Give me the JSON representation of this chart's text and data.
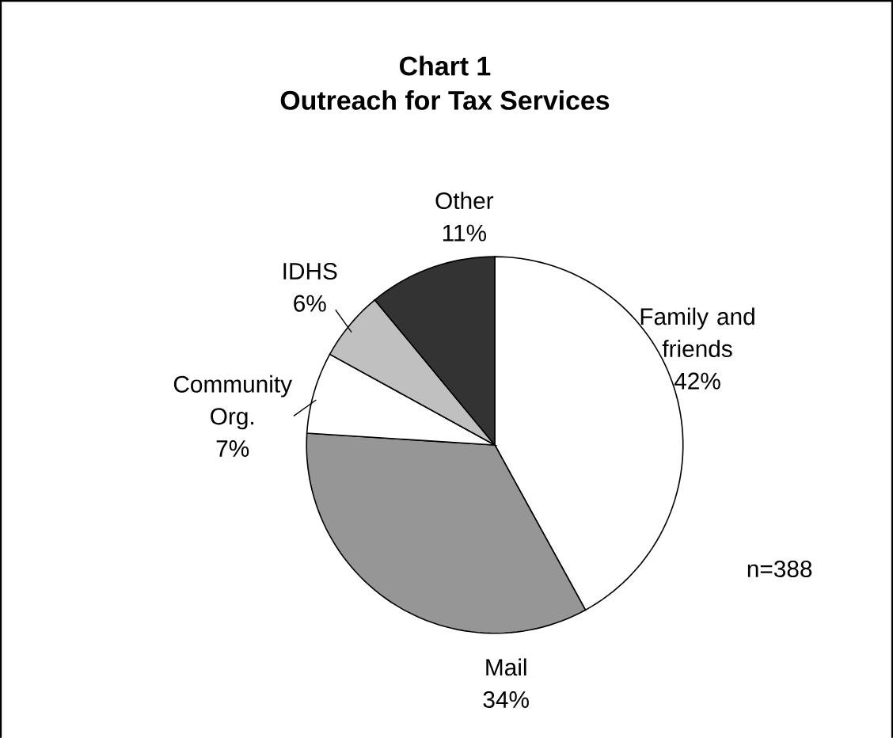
{
  "chart_data": {
    "type": "pie",
    "title": "Chart 1",
    "subtitle": "Outreach for Tax Services",
    "categories": [
      "Family and friends",
      "Mail",
      "Community Org.",
      "IDHS",
      "Other"
    ],
    "values": [
      42,
      34,
      7,
      6,
      11
    ],
    "colors": [
      "#ffffff",
      "#969696",
      "#ffffff",
      "#c0c0c0",
      "#333333"
    ],
    "value_labels": [
      "42%",
      "34%",
      "7%",
      "6%",
      "11%"
    ],
    "annotations": [
      "n=388"
    ]
  }
}
